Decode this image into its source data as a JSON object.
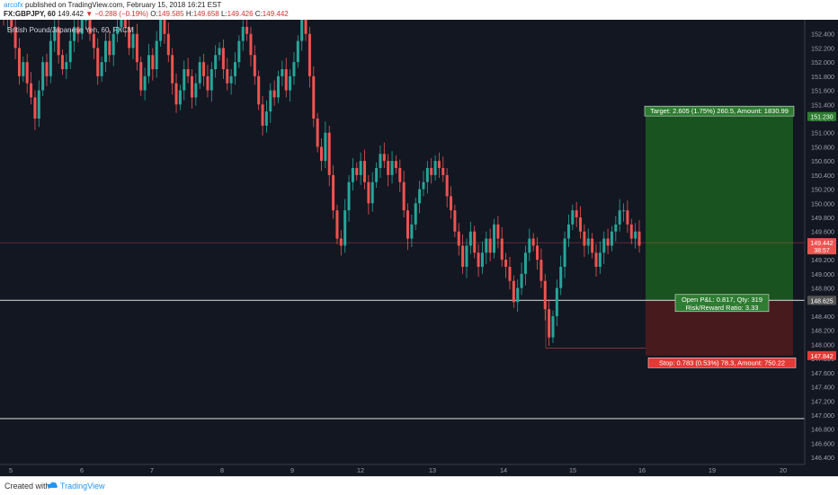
{
  "header": {
    "author": "arcofx",
    "published": "published on TradingView.com, February 15, 2018 16:21 EST",
    "symbol": "FX:GBPJPY, 60",
    "last": "149.442",
    "change": "−0.288 (−0.19%)",
    "open_label": "O:",
    "open": "149.585",
    "high_label": "H:",
    "high": "149.658",
    "low_label": "L:",
    "low": "149.426",
    "close_label": "C:",
    "close": "149.442"
  },
  "legend": "British Pound/Japanese Yen, 60, FXCM",
  "footer": {
    "created": "Created with",
    "brand": "TradingView"
  },
  "colors": {
    "up": "#26a69a",
    "down": "#ef5350",
    "background": "#131722",
    "target_zone": "#1b5e20",
    "stop_zone": "#4a1a1e"
  },
  "chart_data": {
    "type": "candlestick",
    "y_range": [
      146.3,
      152.6
    ],
    "y_ticks": [
      "152.400",
      "152.200",
      "152.000",
      "151.800",
      "151.600",
      "151.400",
      "151.200",
      "151.000",
      "150.800",
      "150.600",
      "150.400",
      "150.200",
      "150.000",
      "149.800",
      "149.600",
      "149.400",
      "149.200",
      "149.000",
      "148.800",
      "148.600",
      "148.400",
      "148.200",
      "148.000",
      "147.800",
      "147.600",
      "147.400",
      "147.200",
      "147.000",
      "146.800",
      "146.600",
      "146.400"
    ],
    "x_ticks": [
      "5",
      "6",
      "7",
      "8",
      "9",
      "12",
      "13",
      "14",
      "15",
      "16",
      "19",
      "20"
    ],
    "price_labels": [
      {
        "text": "151.230",
        "value": 151.23,
        "color": "#2e7d32"
      },
      {
        "text": "149.442",
        "value": 149.442,
        "color": "#ef5350"
      },
      {
        "text": "38:57",
        "value": 149.34,
        "color": "#ef5350"
      },
      {
        "text": "148.625",
        "value": 148.625,
        "color": "#555555"
      },
      {
        "text": "147.842",
        "value": 147.842,
        "color": "#e53935"
      }
    ],
    "horizontal_lines": [
      148.625,
      146.95
    ],
    "current_price": 149.442,
    "position": {
      "entry": 148.625,
      "target": 151.23,
      "stop": 147.842,
      "target_label": "Target: 2.605 (1.75%) 260.5, Amount: 1830.99",
      "stop_label": "Stop: 0.783 (0.53%) 78.3, Amount: 750.22",
      "pnl_label": "Open P&L: 0.817, Qty: 319",
      "rr_label": "Risk/Reward Ratio: 3.33"
    },
    "closes": [
      152.6,
      152.7,
      152.5,
      152.2,
      151.8,
      152.0,
      151.7,
      151.5,
      151.2,
      151.6,
      152.0,
      151.8,
      152.3,
      152.5,
      152.1,
      151.9,
      152.0,
      152.3,
      152.5,
      152.4,
      152.6,
      152.6,
      152.4,
      152.2,
      151.8,
      152.0,
      152.3,
      152.1,
      152.4,
      152.5,
      152.6,
      152.5,
      152.2,
      152.4,
      152.0,
      151.6,
      151.8,
      152.1,
      151.9,
      152.3,
      152.6,
      152.4,
      152.1,
      151.7,
      151.4,
      151.6,
      151.9,
      151.8,
      151.5,
      151.7,
      152.0,
      151.8,
      151.6,
      151.9,
      152.1,
      152.2,
      151.9,
      151.7,
      151.8,
      152.0,
      152.3,
      152.5,
      152.4,
      152.1,
      151.8,
      151.4,
      151.1,
      151.3,
      151.6,
      151.5,
      151.8,
      151.9,
      151.6,
      151.8,
      152.0,
      152.3,
      152.6,
      152.4,
      151.8,
      151.2,
      150.8,
      150.6,
      151.0,
      150.4,
      149.9,
      149.5,
      149.4,
      149.9,
      150.3,
      150.5,
      150.4,
      150.6,
      150.3,
      150.0,
      150.3,
      150.5,
      150.7,
      150.6,
      150.4,
      150.6,
      150.5,
      150.3,
      149.9,
      149.5,
      149.7,
      150.0,
      150.2,
      150.3,
      150.5,
      150.4,
      150.6,
      150.5,
      150.4,
      150.1,
      149.9,
      149.6,
      149.4,
      149.1,
      149.4,
      149.6,
      149.3,
      149.1,
      149.3,
      149.5,
      149.3,
      149.7,
      149.5,
      149.2,
      149.1,
      148.9,
      148.6,
      148.8,
      149.0,
      149.3,
      149.5,
      149.4,
      149.2,
      148.9,
      148.5,
      148.1,
      148.4,
      148.8,
      149.1,
      149.5,
      149.7,
      149.9,
      149.8,
      149.6,
      149.4,
      149.5,
      149.3,
      149.1,
      149.3,
      149.5,
      149.4,
      149.6,
      149.7,
      149.9,
      149.9,
      149.7,
      149.5,
      149.6,
      149.4
    ]
  }
}
